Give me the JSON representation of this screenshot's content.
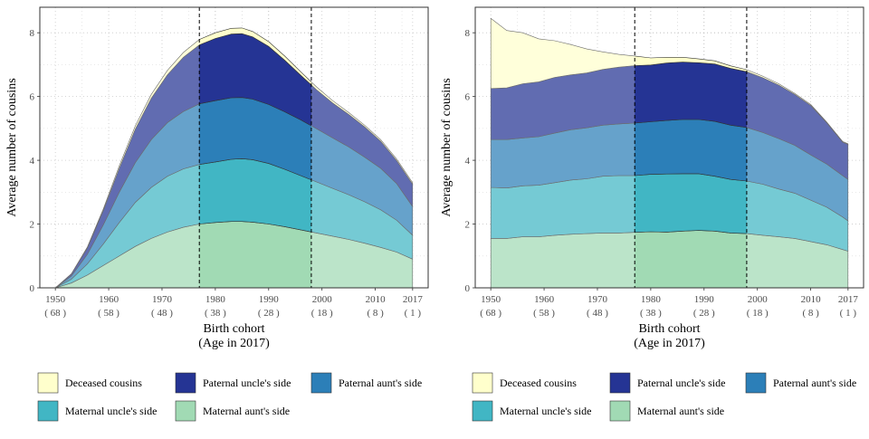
{
  "chart_data": [
    {
      "type": "area",
      "stacked": true,
      "xlabel": "Birth cohort",
      "xlabel_sub": "(Age in 2017)",
      "ylabel": "Average number of cousins",
      "xlim": [
        1950,
        2017
      ],
      "ylim": [
        0,
        8.8
      ],
      "yticks": [
        0,
        2,
        4,
        6,
        8
      ],
      "xticks": [
        {
          "x": 1950,
          "label": "1950",
          "sub": "( 68 )"
        },
        {
          "x": 1960,
          "label": "1960",
          "sub": "( 58 )"
        },
        {
          "x": 1970,
          "label": "1970",
          "sub": "( 48 )"
        },
        {
          "x": 1980,
          "label": "1980",
          "sub": "( 38 )"
        },
        {
          "x": 1990,
          "label": "1990",
          "sub": "( 28 )"
        },
        {
          "x": 2000,
          "label": "2000",
          "sub": "( 18 )"
        },
        {
          "x": 2010,
          "label": "2010",
          "sub": "( 8 )"
        },
        {
          "x": 2017,
          "label": "2017",
          "sub": "( 1 )"
        }
      ],
      "grid": true,
      "vlines": [
        1977,
        1998
      ],
      "highlight_range": [
        1977,
        1998
      ],
      "x": [
        1950,
        1953,
        1956,
        1959,
        1962,
        1965,
        1968,
        1971,
        1974,
        1977,
        1980,
        1983,
        1985,
        1987,
        1990,
        1993,
        1996,
        1999,
        2002,
        2005,
        2008,
        2011,
        2014,
        2017
      ],
      "series": [
        {
          "name": "Maternal aunt's side",
          "color": "#a1dab4",
          "values": [
            0.0,
            0.15,
            0.4,
            0.7,
            1.0,
            1.3,
            1.55,
            1.75,
            1.9,
            2.0,
            2.05,
            2.08,
            2.08,
            2.06,
            2.0,
            1.92,
            1.82,
            1.72,
            1.62,
            1.52,
            1.4,
            1.27,
            1.12,
            0.9
          ]
        },
        {
          "name": "Maternal uncle's side",
          "color": "#41b6c4",
          "values": [
            0.0,
            0.12,
            0.35,
            0.68,
            1.05,
            1.38,
            1.6,
            1.75,
            1.83,
            1.87,
            1.9,
            1.95,
            1.97,
            1.96,
            1.9,
            1.8,
            1.7,
            1.6,
            1.5,
            1.4,
            1.3,
            1.18,
            1.0,
            0.75
          ]
        },
        {
          "name": "Paternal aunt's side",
          "color": "#2c7fb8",
          "values": [
            0.0,
            0.1,
            0.3,
            0.6,
            0.95,
            1.25,
            1.5,
            1.68,
            1.8,
            1.9,
            1.92,
            1.93,
            1.92,
            1.9,
            1.85,
            1.8,
            1.75,
            1.67,
            1.58,
            1.5,
            1.4,
            1.3,
            1.15,
            0.9
          ]
        },
        {
          "name": "Paternal uncle's side",
          "color": "#253494",
          "values": [
            0.0,
            0.06,
            0.2,
            0.45,
            0.75,
            1.05,
            1.3,
            1.5,
            1.7,
            1.85,
            1.95,
            2.0,
            2.0,
            1.95,
            1.82,
            1.62,
            1.4,
            1.22,
            1.1,
            1.02,
            0.95,
            0.85,
            0.72,
            0.7
          ]
        },
        {
          "name": "Deceased cousins",
          "color": "#ffffcc",
          "values": [
            0.0,
            0.01,
            0.03,
            0.05,
            0.08,
            0.1,
            0.12,
            0.14,
            0.15,
            0.17,
            0.18,
            0.18,
            0.18,
            0.17,
            0.15,
            0.13,
            0.11,
            0.09,
            0.07,
            0.06,
            0.05,
            0.05,
            0.05,
            0.05
          ]
        }
      ]
    },
    {
      "type": "area",
      "stacked": true,
      "xlabel": "Birth cohort",
      "xlabel_sub": "(Age in 2017)",
      "ylabel": "Average number of cousins",
      "xlim": [
        1950,
        2017
      ],
      "ylim": [
        0,
        8.8
      ],
      "yticks": [
        0,
        2,
        4,
        6,
        8
      ],
      "xticks": [
        {
          "x": 1950,
          "label": "1950",
          "sub": "( 68 )"
        },
        {
          "x": 1960,
          "label": "1960",
          "sub": "( 58 )"
        },
        {
          "x": 1970,
          "label": "1970",
          "sub": "( 48 )"
        },
        {
          "x": 1980,
          "label": "1980",
          "sub": "( 38 )"
        },
        {
          "x": 1990,
          "label": "1990",
          "sub": "( 28 )"
        },
        {
          "x": 2000,
          "label": "2000",
          "sub": "( 18 )"
        },
        {
          "x": 2010,
          "label": "2010",
          "sub": "( 8 )"
        },
        {
          "x": 2017,
          "label": "2017",
          "sub": "( 1 )"
        }
      ],
      "grid": true,
      "vlines": [
        1977,
        1998
      ],
      "highlight_range": [
        1977,
        1998
      ],
      "x": [
        1950,
        1953,
        1956,
        1959,
        1962,
        1965,
        1968,
        1971,
        1974,
        1977,
        1980,
        1983,
        1986,
        1989,
        1992,
        1995,
        1998,
        2001,
        2004,
        2007,
        2010,
        2013,
        2016,
        2017
      ],
      "series": [
        {
          "name": "Maternal aunt's side",
          "color": "#a1dab4",
          "values": [
            1.55,
            1.55,
            1.6,
            1.6,
            1.65,
            1.68,
            1.7,
            1.72,
            1.72,
            1.74,
            1.76,
            1.75,
            1.78,
            1.8,
            1.78,
            1.72,
            1.7,
            1.65,
            1.6,
            1.55,
            1.45,
            1.35,
            1.2,
            1.15
          ]
        },
        {
          "name": "Maternal uncle's side",
          "color": "#41b6c4",
          "values": [
            1.6,
            1.58,
            1.6,
            1.62,
            1.65,
            1.7,
            1.72,
            1.78,
            1.8,
            1.78,
            1.8,
            1.82,
            1.8,
            1.78,
            1.72,
            1.68,
            1.65,
            1.6,
            1.5,
            1.42,
            1.3,
            1.18,
            1.02,
            0.95
          ]
        },
        {
          "name": "Paternal aunt's side",
          "color": "#2c7fb8",
          "values": [
            1.5,
            1.52,
            1.5,
            1.52,
            1.55,
            1.58,
            1.6,
            1.6,
            1.62,
            1.65,
            1.65,
            1.68,
            1.7,
            1.7,
            1.72,
            1.7,
            1.68,
            1.62,
            1.58,
            1.5,
            1.42,
            1.35,
            1.3,
            1.3
          ]
        },
        {
          "name": "Paternal uncle's side",
          "color": "#253494",
          "values": [
            1.6,
            1.62,
            1.7,
            1.72,
            1.75,
            1.72,
            1.72,
            1.75,
            1.78,
            1.8,
            1.78,
            1.8,
            1.8,
            1.78,
            1.8,
            1.78,
            1.75,
            1.72,
            1.68,
            1.6,
            1.55,
            1.3,
            1.05,
            1.1
          ]
        },
        {
          "name": "Deceased cousins",
          "color": "#ffffcc",
          "values": [
            2.2,
            1.8,
            1.6,
            1.35,
            1.15,
            0.95,
            0.75,
            0.55,
            0.4,
            0.3,
            0.22,
            0.18,
            0.15,
            0.12,
            0.1,
            0.08,
            0.06,
            0.05,
            0.04,
            0.03,
            0.03,
            0.02,
            0.02,
            0.02
          ]
        }
      ]
    }
  ],
  "legend": [
    {
      "label": "Deceased cousins",
      "color": "#ffffcc"
    },
    {
      "label": "Paternal uncle's side",
      "color": "#253494"
    },
    {
      "label": "Paternal aunt's side",
      "color": "#2c7fb8"
    },
    {
      "label": "Maternal uncle's side",
      "color": "#41b6c4"
    },
    {
      "label": "Maternal aunt's side",
      "color": "#a1dab4"
    }
  ]
}
